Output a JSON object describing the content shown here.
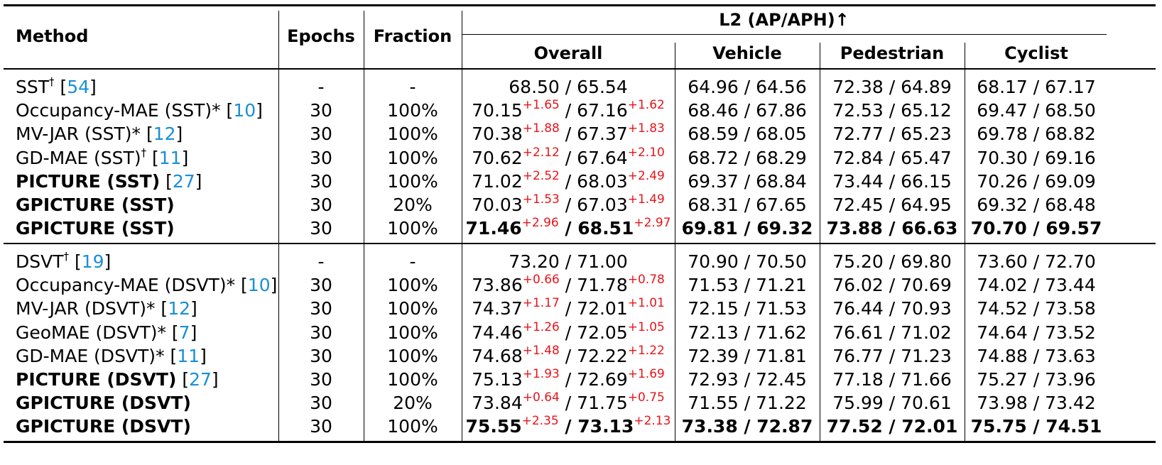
{
  "table": {
    "headers": {
      "method": "Method",
      "epochs": "Epochs",
      "fraction": "Fraction",
      "group": "L2 (AP/APH)↑",
      "overall": "Overall",
      "vehicle": "Vehicle",
      "pedestrian": "Pedestrian",
      "cyclist": "Cyclist"
    },
    "groups": [
      [
        {
          "name": "SST",
          "mark": "†",
          "ref": "54",
          "bold": false,
          "epochs": "-",
          "fraction": "-",
          "ov_ap": "68.50",
          "ov_ap_gain": "",
          "ov_aph": "65.54",
          "ov_aph_gain": "",
          "veh": "64.96 / 64.56",
          "ped": "72.38 / 64.89",
          "cyc": "68.17 / 67.17",
          "best": false
        },
        {
          "name": "Occupancy-MAE (SST)",
          "mark": "*",
          "ref": "10",
          "bold": false,
          "epochs": "30",
          "fraction": "100%",
          "ov_ap": "70.15",
          "ov_ap_gain": "+1.65",
          "ov_aph": "67.16",
          "ov_aph_gain": "+1.62",
          "veh": "68.46 / 67.86",
          "ped": "72.53 / 65.12",
          "cyc": "69.47 / 68.50",
          "best": false
        },
        {
          "name": "MV-JAR (SST)",
          "mark": "*",
          "ref": "12",
          "bold": false,
          "epochs": "30",
          "fraction": "100%",
          "ov_ap": "70.38",
          "ov_ap_gain": "+1.88",
          "ov_aph": "67.37",
          "ov_aph_gain": "+1.83",
          "veh": "68.59 / 68.05",
          "ped": "72.77 / 65.23",
          "cyc": "69.78 / 68.82",
          "best": false
        },
        {
          "name": "GD-MAE (SST)",
          "mark": "†",
          "ref": "11",
          "bold": false,
          "epochs": "30",
          "fraction": "100%",
          "ov_ap": "70.62",
          "ov_ap_gain": "+2.12",
          "ov_aph": "67.64",
          "ov_aph_gain": "+2.10",
          "veh": "68.72 / 68.29",
          "ped": "72.84 / 65.47",
          "cyc": "70.30 / 69.16",
          "best": false
        },
        {
          "name": "PICTURE (SST)",
          "mark": "",
          "ref": "27",
          "bold": true,
          "epochs": "30",
          "fraction": "100%",
          "ov_ap": "71.02",
          "ov_ap_gain": "+2.52",
          "ov_aph": "68.03",
          "ov_aph_gain": "+2.49",
          "veh": "69.37 / 68.84",
          "ped": "73.44 / 66.15",
          "cyc": "70.26 / 69.09",
          "best": false
        },
        {
          "name": "GPICTURE (SST)",
          "mark": "",
          "ref": "",
          "bold": true,
          "epochs": "30",
          "fraction": "20%",
          "ov_ap": "70.03",
          "ov_ap_gain": "+1.53",
          "ov_aph": "67.03",
          "ov_aph_gain": "+1.49",
          "veh": "68.31 / 67.65",
          "ped": "72.45 / 64.95",
          "cyc": "69.32 / 68.48",
          "best": false
        },
        {
          "name": "GPICTURE (SST)",
          "mark": "",
          "ref": "",
          "bold": true,
          "epochs": "30",
          "fraction": "100%",
          "ov_ap": "71.46",
          "ov_ap_gain": "+2.96",
          "ov_aph": "68.51",
          "ov_aph_gain": "+2.97",
          "veh": "69.81 / 69.32",
          "ped": "73.88 / 66.63",
          "cyc": "70.70 / 69.57",
          "best": true
        }
      ],
      [
        {
          "name": "DSVT",
          "mark": "†",
          "ref": "19",
          "bold": false,
          "epochs": "-",
          "fraction": "-",
          "ov_ap": "73.20",
          "ov_ap_gain": "",
          "ov_aph": "71.00",
          "ov_aph_gain": "",
          "veh": "70.90 / 70.50",
          "ped": "75.20 / 69.80",
          "cyc": "73.60 / 72.70",
          "best": false
        },
        {
          "name": "Occupancy-MAE (DSVT)",
          "mark": "*",
          "ref": "10",
          "bold": false,
          "epochs": "30",
          "fraction": "100%",
          "ov_ap": "73.86",
          "ov_ap_gain": "+0.66",
          "ov_aph": "71.78",
          "ov_aph_gain": "+0.78",
          "veh": "71.53 / 71.21",
          "ped": "76.02 / 70.69",
          "cyc": "74.02 / 73.44",
          "best": false
        },
        {
          "name": "MV-JAR (DSVT)",
          "mark": "*",
          "ref": "12",
          "bold": false,
          "epochs": "30",
          "fraction": "100%",
          "ov_ap": "74.37",
          "ov_ap_gain": "+1.17",
          "ov_aph": "72.01",
          "ov_aph_gain": "+1.01",
          "veh": "72.15 / 71.53",
          "ped": "76.44 / 70.93",
          "cyc": "74.52 / 73.58",
          "best": false
        },
        {
          "name": "GeoMAE (DSVT)",
          "mark": "*",
          "ref": "7",
          "bold": false,
          "epochs": "30",
          "fraction": "100%",
          "ov_ap": "74.46",
          "ov_ap_gain": "+1.26",
          "ov_aph": "72.05",
          "ov_aph_gain": "+1.05",
          "veh": "72.13 / 71.62",
          "ped": "76.61 / 71.02",
          "cyc": "74.64 / 73.52",
          "best": false
        },
        {
          "name": "GD-MAE (DSVT)",
          "mark": "*",
          "ref": "11",
          "bold": false,
          "epochs": "30",
          "fraction": "100%",
          "ov_ap": "74.68",
          "ov_ap_gain": "+1.48",
          "ov_aph": "72.22",
          "ov_aph_gain": "+1.22",
          "veh": "72.39 / 71.81",
          "ped": "76.77 / 71.23",
          "cyc": "74.88 / 73.63",
          "best": false
        },
        {
          "name": "PICTURE (DSVT)",
          "mark": "",
          "ref": "27",
          "bold": true,
          "epochs": "30",
          "fraction": "100%",
          "ov_ap": "75.13",
          "ov_ap_gain": "+1.93",
          "ov_aph": "72.69",
          "ov_aph_gain": "+1.69",
          "veh": "72.93 / 72.45",
          "ped": "77.18 / 71.66",
          "cyc": "75.27 / 73.96",
          "best": false
        },
        {
          "name": "GPICTURE (DSVT)",
          "mark": "",
          "ref": "",
          "bold": true,
          "epochs": "30",
          "fraction": "20%",
          "ov_ap": "73.84",
          "ov_ap_gain": "+0.64",
          "ov_aph": "71.75",
          "ov_aph_gain": "+0.75",
          "veh": "71.55 / 71.22",
          "ped": "75.99 / 70.61",
          "cyc": "73.98 / 73.42",
          "best": false
        },
        {
          "name": "GPICTURE (DSVT)",
          "mark": "",
          "ref": "",
          "bold": true,
          "epochs": "30",
          "fraction": "100%",
          "ov_ap": "75.55",
          "ov_ap_gain": "+2.35",
          "ov_aph": "73.13",
          "ov_aph_gain": "+2.13",
          "veh": "73.38 / 72.87",
          "ped": "77.52 / 72.01",
          "cyc": "75.75 / 74.51",
          "best": true
        }
      ]
    ]
  },
  "colors": {
    "citation": "#1a8fd6",
    "gain": "#e8141a",
    "text": "#000000"
  }
}
